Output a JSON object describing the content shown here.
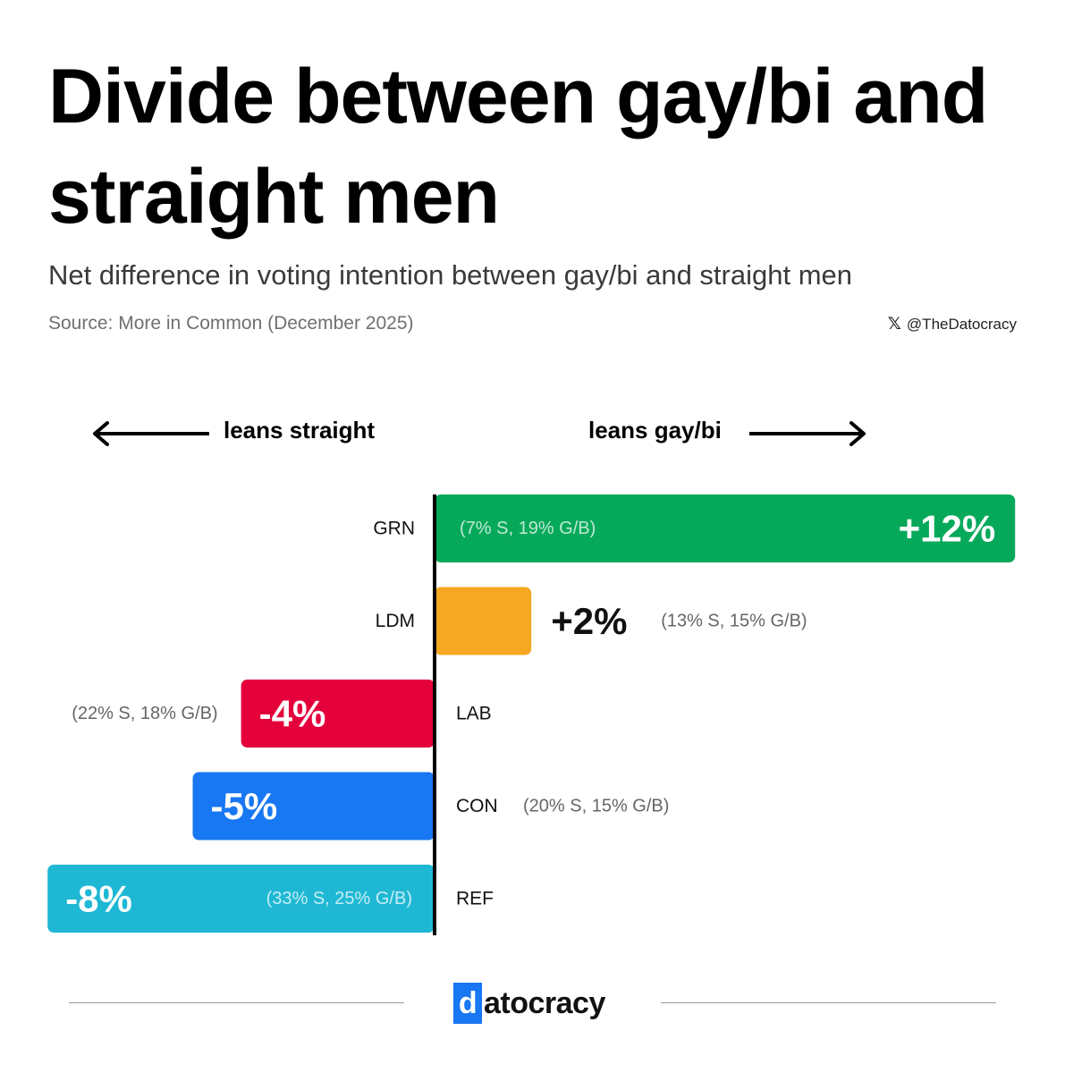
{
  "title": "Divide between gay/bi and straight men",
  "subtitle": "Net difference in voting intention between gay/bi and straight men",
  "source": "Source: More in Common (December 2025)",
  "handle": {
    "icon": "x-logo-icon",
    "text": "@TheDatocracy"
  },
  "lean_left": "leans straight",
  "lean_right": "leans gay/bi",
  "logo": {
    "first_letter": "d",
    "rest": "atocracy"
  },
  "chart_data": {
    "type": "bar",
    "orientation": "horizontal",
    "xlim": [
      -8,
      12
    ],
    "categories": [
      "GRN",
      "LDM",
      "LAB",
      "CON",
      "REF"
    ],
    "values": [
      12,
      2,
      -4,
      -5,
      -8
    ],
    "value_labels": [
      "+12%",
      "+2%",
      "-4%",
      "-5%",
      "-8%"
    ],
    "detail_labels": [
      "(7% S, 19% G/B)",
      "(13% S, 15% G/B)",
      "(22% S, 18% G/B)",
      "(20% S, 15% G/B)",
      "(33% S, 25% G/B)"
    ],
    "colors": [
      "#06a95a",
      "#f7a823",
      "#e4003b",
      "#1877f2",
      "#1fb8d4"
    ]
  }
}
